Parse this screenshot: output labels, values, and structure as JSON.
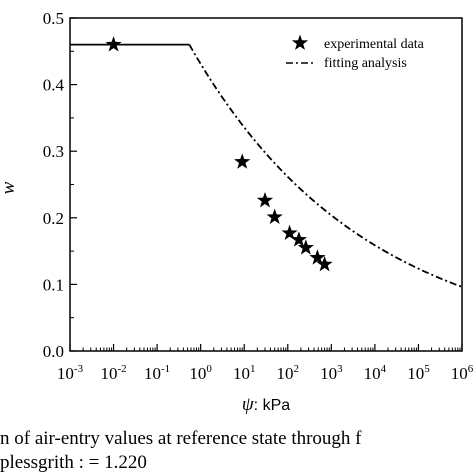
{
  "chart_data": {
    "type": "scatter",
    "xlabel_symbol": "ψ",
    "xlabel_unit": ": kPa",
    "ylabel": "w",
    "x_scale": "log",
    "xlim": [
      0.001,
      1000000
    ],
    "ylim": [
      0.0,
      0.5
    ],
    "x_ticks": [
      {
        "base": "10",
        "exp": "-3"
      },
      {
        "base": "10",
        "exp": "-2"
      },
      {
        "base": "10",
        "exp": "-1"
      },
      {
        "base": "10",
        "exp": "0"
      },
      {
        "base": "10",
        "exp": "1"
      },
      {
        "base": "10",
        "exp": "2"
      },
      {
        "base": "10",
        "exp": "3"
      },
      {
        "base": "10",
        "exp": "4"
      },
      {
        "base": "10",
        "exp": "5"
      },
      {
        "base": "10",
        "exp": "6"
      }
    ],
    "y_ticks": [
      "0.0",
      "0.1",
      "0.2",
      "0.3",
      "0.4",
      "0.5"
    ],
    "legend_position": "top-right",
    "series": [
      {
        "name": "experimental data",
        "marker": "star",
        "points": [
          {
            "x": 0.01,
            "y": 0.46
          },
          {
            "x": 9,
            "y": 0.284
          },
          {
            "x": 30,
            "y": 0.226
          },
          {
            "x": 50,
            "y": 0.201
          },
          {
            "x": 110,
            "y": 0.177
          },
          {
            "x": 180,
            "y": 0.167
          },
          {
            "x": 260,
            "y": 0.155
          },
          {
            "x": 480,
            "y": 0.14
          },
          {
            "x": 700,
            "y": 0.13
          }
        ]
      },
      {
        "name": "fitting analysis",
        "line_style": "dash-dot",
        "model": {
          "saturated_w": 0.46,
          "air_entry_x": 0.55,
          "slope": 0.1085
        }
      }
    ]
  },
  "caption": {
    "line1": "n of air-entry values at reference state through f",
    "line2": "plessgrith : = 1.220"
  }
}
